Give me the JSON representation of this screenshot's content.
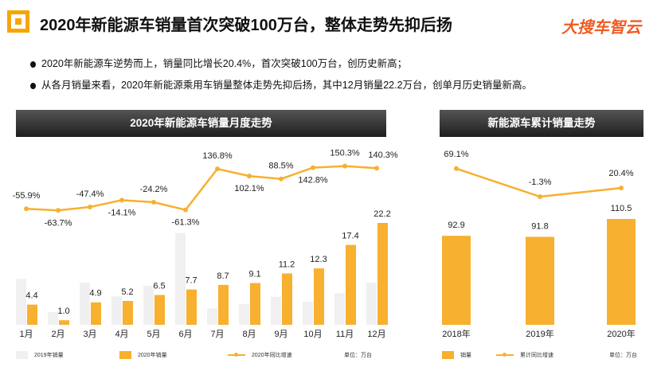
{
  "header": {
    "title": "2020年新能源车销量首次突破100万台，整体走势先抑后扬",
    "brand": "大搜车智云"
  },
  "bullets": [
    "2020年新能源车逆势而上，销量同比增长20.4%，首次突破100万台，创历史新高；",
    "从各月销量来看，2020年新能源乘用车销量整体走势先抑后扬，其中12月销量22.2万台，创单月历史销量新高。"
  ],
  "colors": {
    "bar2019": "#f0f0f0",
    "bar2020": "#f7b02f",
    "line": "#f7b02f",
    "brand": "#f15a22"
  },
  "chart_data": [
    {
      "type": "bar+line",
      "title": "2020年新能源车销量月度走势",
      "categories": [
        "1月",
        "2月",
        "3月",
        "4月",
        "5月",
        "6月",
        "7月",
        "8月",
        "9月",
        "10月",
        "11月",
        "12月"
      ],
      "series": [
        {
          "name": "2019年销量",
          "type": "bar",
          "values": [
            10.0,
            2.8,
            9.2,
            6.2,
            8.5,
            20.0,
            3.6,
            4.5,
            6.1,
            5.0,
            6.9,
            9.2
          ]
        },
        {
          "name": "2020年销量",
          "type": "bar",
          "values": [
            4.4,
            1.0,
            4.9,
            5.2,
            6.5,
            7.7,
            8.7,
            9.1,
            11.2,
            12.3,
            17.4,
            22.2
          ],
          "labels": [
            "4.4",
            "1.0",
            "4.9",
            "5.2",
            "6.5",
            "7.7",
            "8.7",
            "9.1",
            "11.2",
            "12.3",
            "17.4",
            "22.2"
          ]
        },
        {
          "name": "2020年同比增速",
          "type": "line",
          "values": [
            -55.9,
            -63.7,
            -47.4,
            -14.1,
            -24.2,
            -61.3,
            136.8,
            102.1,
            88.5,
            142.8,
            150.3,
            140.3
          ],
          "labels": [
            "-55.9%",
            "-63.7%",
            "-47.4%",
            "-14.1%",
            "-24.2%",
            "-61.3%",
            "136.8%",
            "102.1%",
            "88.5%",
            "142.8%",
            "150.3%",
            "140.3%"
          ]
        }
      ],
      "unit": "单位：万台",
      "legend": "bottom"
    },
    {
      "type": "bar+line",
      "title": "新能源车累计销量走势",
      "categories": [
        "2018年",
        "2019年",
        "2020年"
      ],
      "series": [
        {
          "name": "销量",
          "type": "bar",
          "values": [
            92.9,
            91.8,
            110.5
          ],
          "labels": [
            "92.9",
            "91.8",
            "110.5"
          ]
        },
        {
          "name": "累计同比增速",
          "type": "line",
          "values": [
            69.1,
            -1.3,
            20.4
          ],
          "labels": [
            "69.1%",
            "-1.3%",
            "20.4%"
          ]
        }
      ],
      "unit": "单位：万台",
      "legend": "bottom"
    }
  ]
}
